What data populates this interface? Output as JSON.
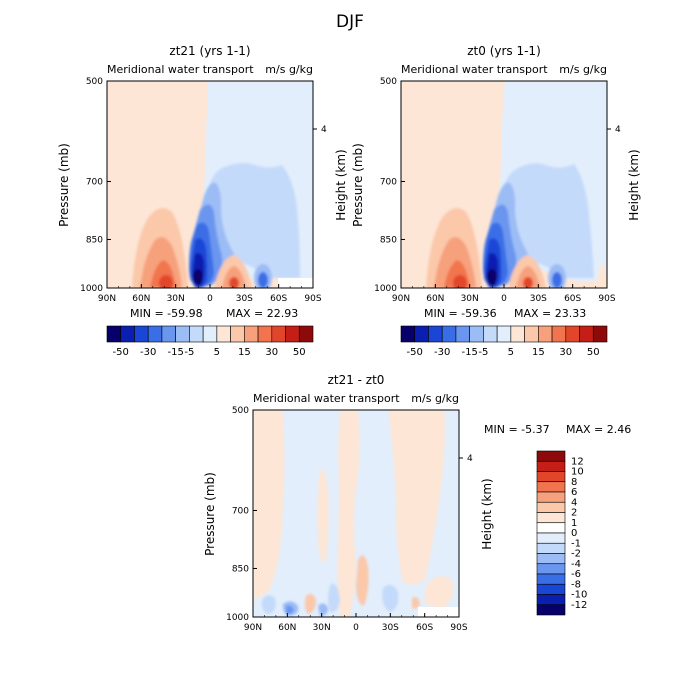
{
  "figure": {
    "title": "DJF"
  },
  "chart_data": [
    {
      "type": "heatmap",
      "title": "zt21 (yrs 1-1)",
      "subtitle_left": "Meridional water transport",
      "subtitle_right": "m/s g/kg",
      "xlabel": "",
      "ylabel": "Pressure (mb)",
      "ylabel_right": "Height (km)",
      "x_ticks": [
        "90N",
        "60N",
        "30N",
        "0",
        "30S",
        "60S",
        "90S"
      ],
      "y_ticks": [
        "500",
        "700",
        "850",
        "1000"
      ],
      "y_right_ticks": [
        "4"
      ],
      "min_label": "MIN = -59.98",
      "max_label": "MAX = 22.93",
      "legend_levels": [
        "-50",
        "-30",
        "-15",
        "-5",
        "5",
        "15",
        "30",
        "50"
      ],
      "legend_colors": [
        "#08006a",
        "#0a1fb0",
        "#1a46d6",
        "#3a6ee6",
        "#6a96f0",
        "#9cbcf6",
        "#c4dafa",
        "#e2eefc",
        "#fde6d6",
        "#fbc8aa",
        "#f7a07c",
        "#f1744e",
        "#e2462a",
        "#c41e16",
        "#8e0a0a"
      ]
    },
    {
      "type": "heatmap",
      "title": "zt0 (yrs 1-1)",
      "subtitle_left": "Meridional water transport",
      "subtitle_right": "m/s g/kg",
      "xlabel": "",
      "ylabel": "Pressure (mb)",
      "ylabel_right": "Height (km)",
      "x_ticks": [
        "90N",
        "60N",
        "30N",
        "0",
        "30S",
        "60S",
        "90S"
      ],
      "y_ticks": [
        "500",
        "700",
        "850",
        "1000"
      ],
      "y_right_ticks": [
        "4"
      ],
      "min_label": "MIN = -59.36",
      "max_label": "MAX = 23.33",
      "legend_levels": [
        "-50",
        "-30",
        "-15",
        "-5",
        "5",
        "15",
        "30",
        "50"
      ],
      "legend_colors": [
        "#08006a",
        "#0a1fb0",
        "#1a46d6",
        "#3a6ee6",
        "#6a96f0",
        "#9cbcf6",
        "#c4dafa",
        "#e2eefc",
        "#fde6d6",
        "#fbc8aa",
        "#f7a07c",
        "#f1744e",
        "#e2462a",
        "#c41e16",
        "#8e0a0a"
      ]
    },
    {
      "type": "heatmap",
      "title": "zt21 - zt0",
      "subtitle_left": "Meridional water transport",
      "subtitle_right": "m/s g/kg",
      "xlabel": "",
      "ylabel": "Pressure (mb)",
      "ylabel_right": "Height (km)",
      "x_ticks": [
        "90N",
        "60N",
        "30N",
        "0",
        "30S",
        "60S",
        "90S"
      ],
      "y_ticks": [
        "500",
        "700",
        "850",
        "1000"
      ],
      "y_right_ticks": [
        "4"
      ],
      "min_label": "MIN =  -5.37",
      "max_label": "MAX =   2.46",
      "legend_levels": [
        "12",
        "10",
        "8",
        "6",
        "4",
        "2",
        "1",
        "0",
        "-1",
        "-2",
        "-4",
        "-6",
        "-8",
        "-10",
        "-12"
      ],
      "legend_colors": [
        "#8e0a0a",
        "#c41e16",
        "#e2462a",
        "#f1744e",
        "#f7a07c",
        "#fbc8aa",
        "#fde6d6",
        "#ffffff",
        "#e2eefc",
        "#c4dafa",
        "#9cbcf6",
        "#6a96f0",
        "#3a6ee6",
        "#1a46d6",
        "#0a1fb0",
        "#08006a"
      ]
    }
  ]
}
